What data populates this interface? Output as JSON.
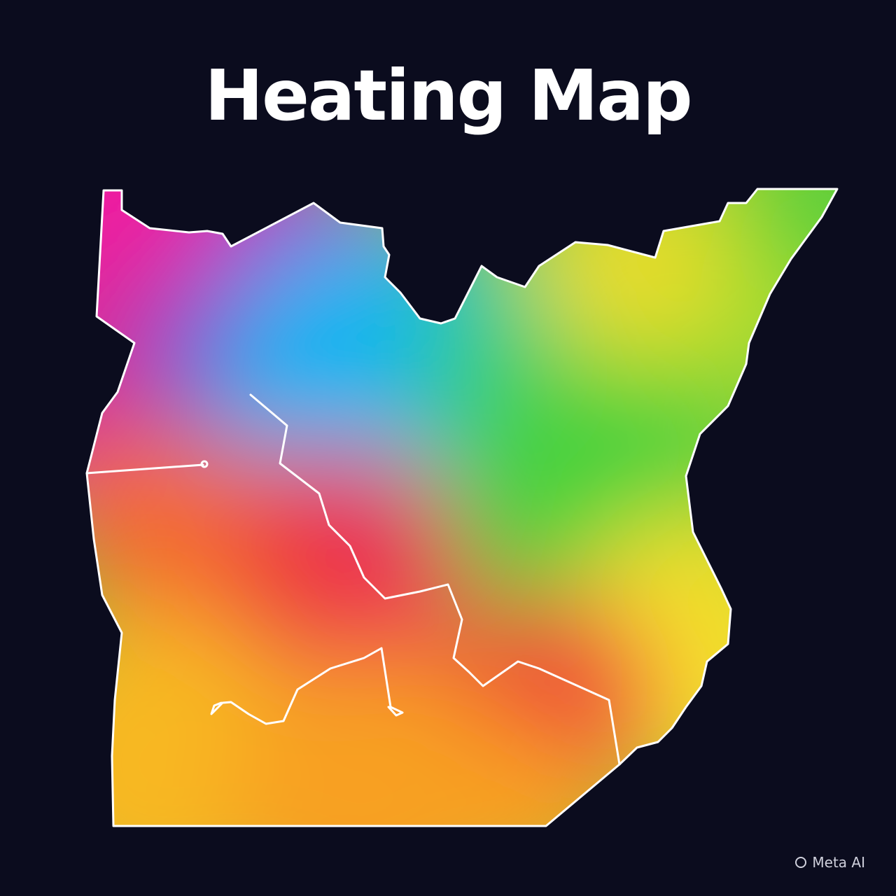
{
  "title": "Heating Map",
  "watermark": "Meta AI",
  "colors": {
    "background": "#0b0c1e",
    "outline": "#ffffff",
    "magenta": "#ee1aa0",
    "blue": "#0cb4f2",
    "green": "#46d23c",
    "yellow": "#f8e02a",
    "red": "#ee3a3e",
    "orange": "#f8a024"
  }
}
